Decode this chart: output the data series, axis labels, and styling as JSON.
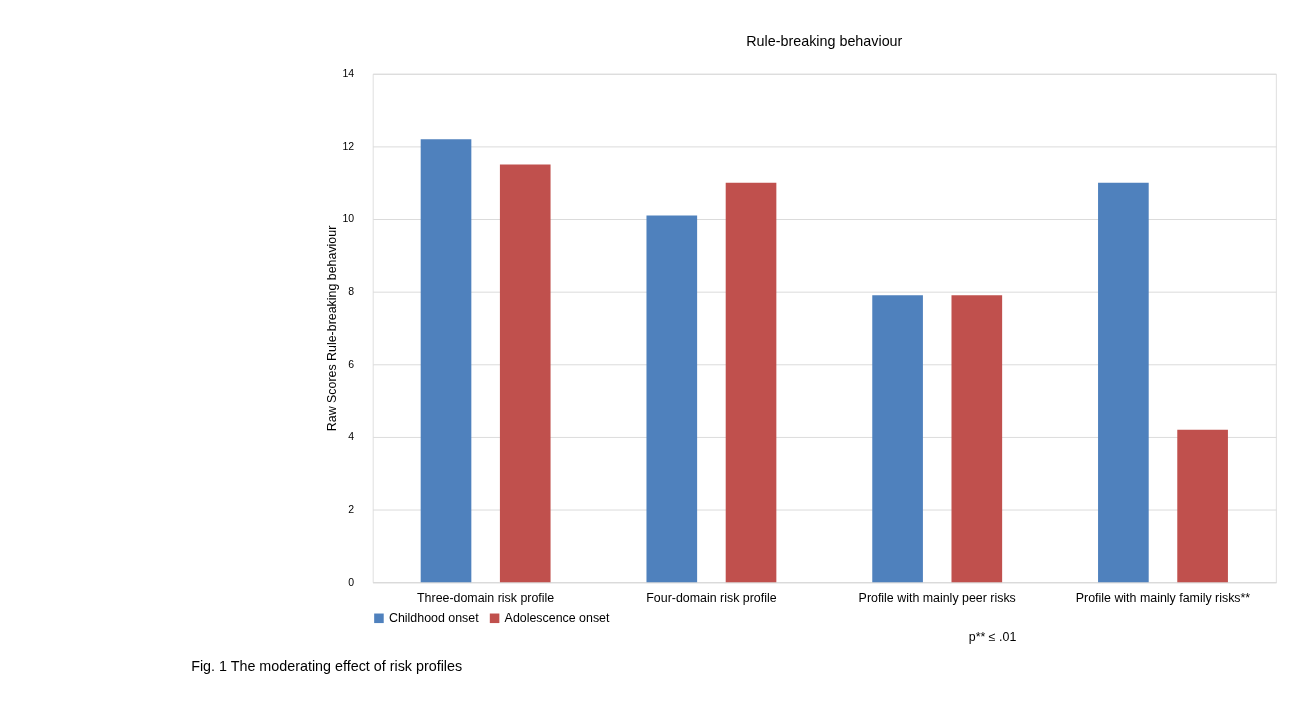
{
  "chart_data": {
    "type": "bar",
    "title": "Rule-breaking behaviour",
    "ylabel": "Raw Scores Rule-breaking behaviour",
    "categories": [
      "Three-domain risk profile",
      "Four-domain risk profile",
      "Profile with mainly peer risks",
      "Profile with mainly family risks**"
    ],
    "series": [
      {
        "name": "Childhood onset",
        "color": "#4f81bd",
        "values": [
          12.2,
          10.1,
          7.9,
          11.0
        ]
      },
      {
        "name": "Adolescence onset",
        "color": "#c0504d",
        "values": [
          11.5,
          11.0,
          7.9,
          4.2
        ]
      }
    ],
    "ylim": [
      0,
      14
    ],
    "yticks": [
      0,
      2,
      4,
      6,
      8,
      10,
      12,
      14
    ],
    "grid": "y",
    "legend": "bottom",
    "annotations": [
      "p** ≤ .01",
      "Fig. 1  The moderating effect of risk profiles"
    ]
  }
}
